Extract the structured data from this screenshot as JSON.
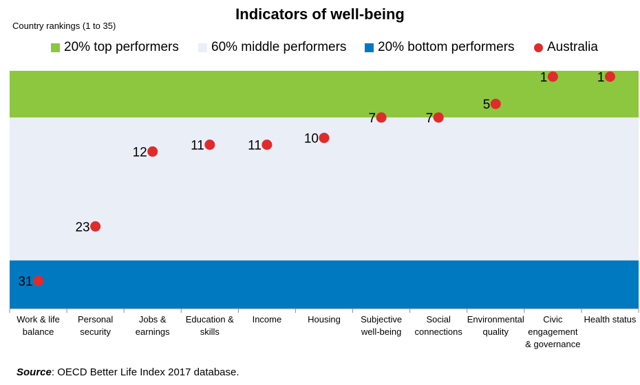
{
  "chart_data": {
    "type": "scatter",
    "title": "Indicators of well-being",
    "ylabel": "Country rankings (1 to 35)",
    "ylim": [
      1,
      35
    ],
    "y_reversed": true,
    "categories": [
      [
        "Work & life",
        "balance"
      ],
      [
        "Personal",
        "security"
      ],
      [
        "Jobs &",
        "earnings"
      ],
      [
        "Education &",
        "skills"
      ],
      [
        "Income"
      ],
      [
        "Housing"
      ],
      [
        "Subjective",
        "well-being"
      ],
      [
        "Social",
        "connections"
      ],
      [
        "Environmental",
        "quality"
      ],
      [
        "Civic",
        "engagement",
        "& governance"
      ],
      [
        "Health status"
      ]
    ],
    "series": [
      {
        "name": "Australia",
        "values": [
          31,
          23,
          12,
          11,
          11,
          10,
          7,
          7,
          5,
          1,
          1
        ]
      }
    ],
    "bands": [
      {
        "name": "20% top performers",
        "from": 1,
        "to": 7,
        "color": "#8dc63f"
      },
      {
        "name": "60% middle performers",
        "from": 7,
        "to": 28,
        "color": "#eaeef7"
      },
      {
        "name": "20% bottom performers",
        "from": 28,
        "to": 35,
        "color": "#0079c1"
      }
    ],
    "marker_color": "#e02b2b",
    "legend": {
      "top": "20% top performers",
      "middle": "60% middle performers",
      "bottom": "20% bottom performers",
      "point": "Australia"
    },
    "grid": false
  },
  "source": {
    "label": "Source",
    "text": ": OECD Better Life Index 2017 database."
  }
}
